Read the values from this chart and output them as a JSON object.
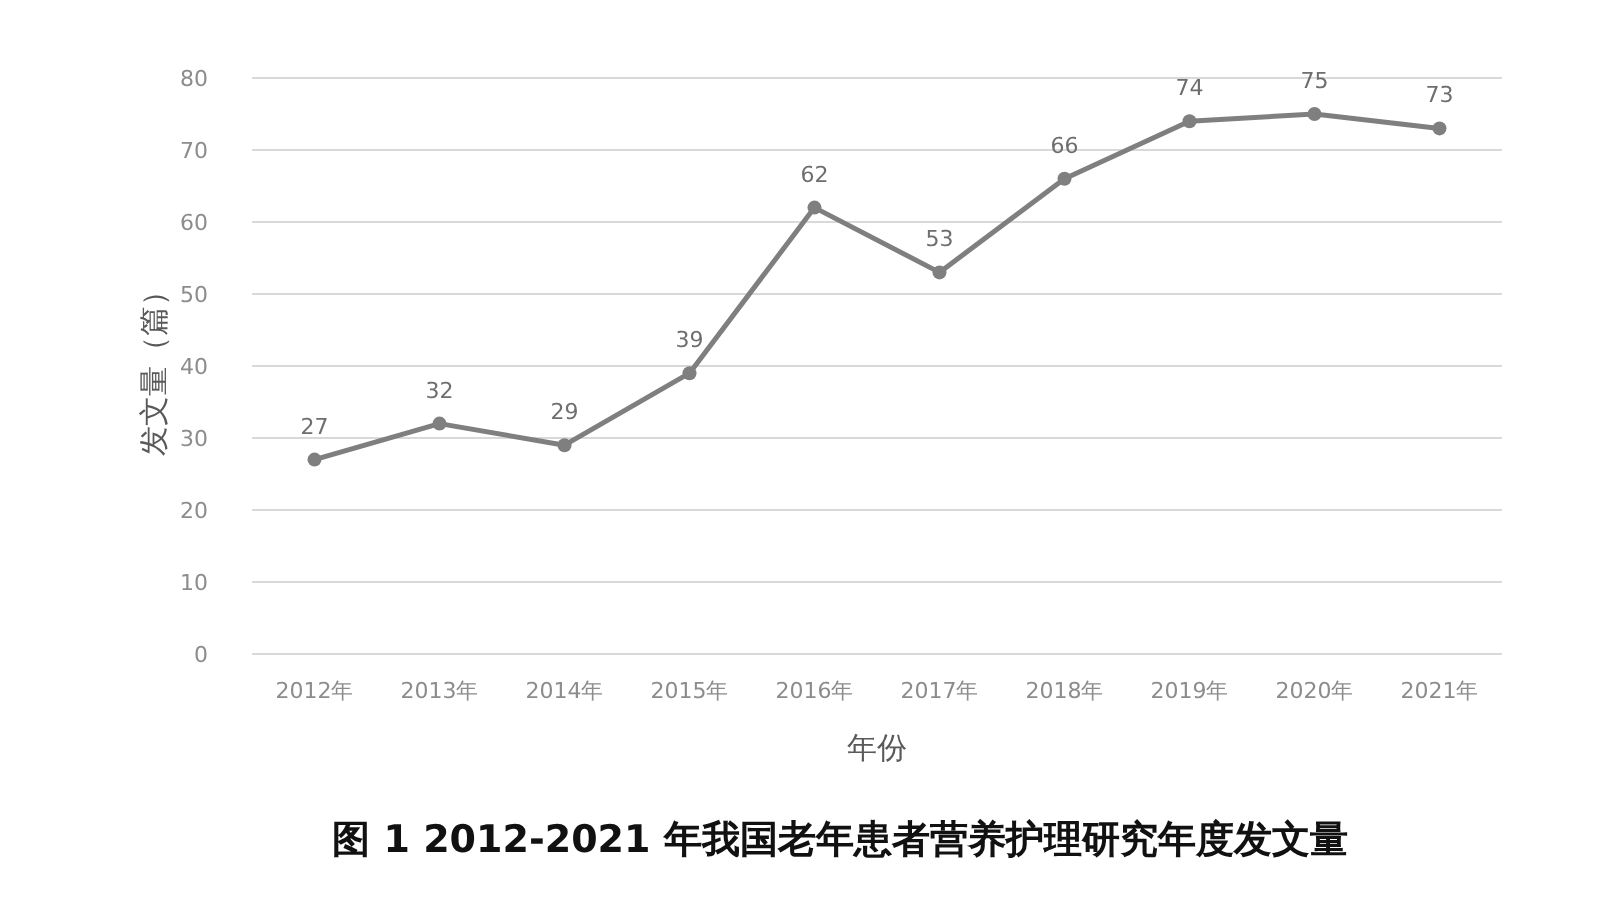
{
  "chart_data": {
    "type": "line",
    "title": "图 1  2012-2021 年我国老年患者营养护理研究年度发文量",
    "xlabel": "年份",
    "ylabel": "发文量（篇）",
    "categories": [
      "2012年",
      "2013年",
      "2014年",
      "2015年",
      "2016年",
      "2017年",
      "2018年",
      "2019年",
      "2020年",
      "2021年"
    ],
    "series": [
      {
        "color": "#7f7f7f",
        "values": [
          27,
          32,
          29,
          39,
          62,
          53,
          66,
          74,
          75,
          73
        ]
      }
    ],
    "ylim": [
      0,
      80
    ],
    "yticks": [
      0,
      10,
      20,
      30,
      40,
      50,
      60,
      70,
      80
    ],
    "grid": "y",
    "marker": "circle",
    "line_style": "solid",
    "data_labels": true
  }
}
